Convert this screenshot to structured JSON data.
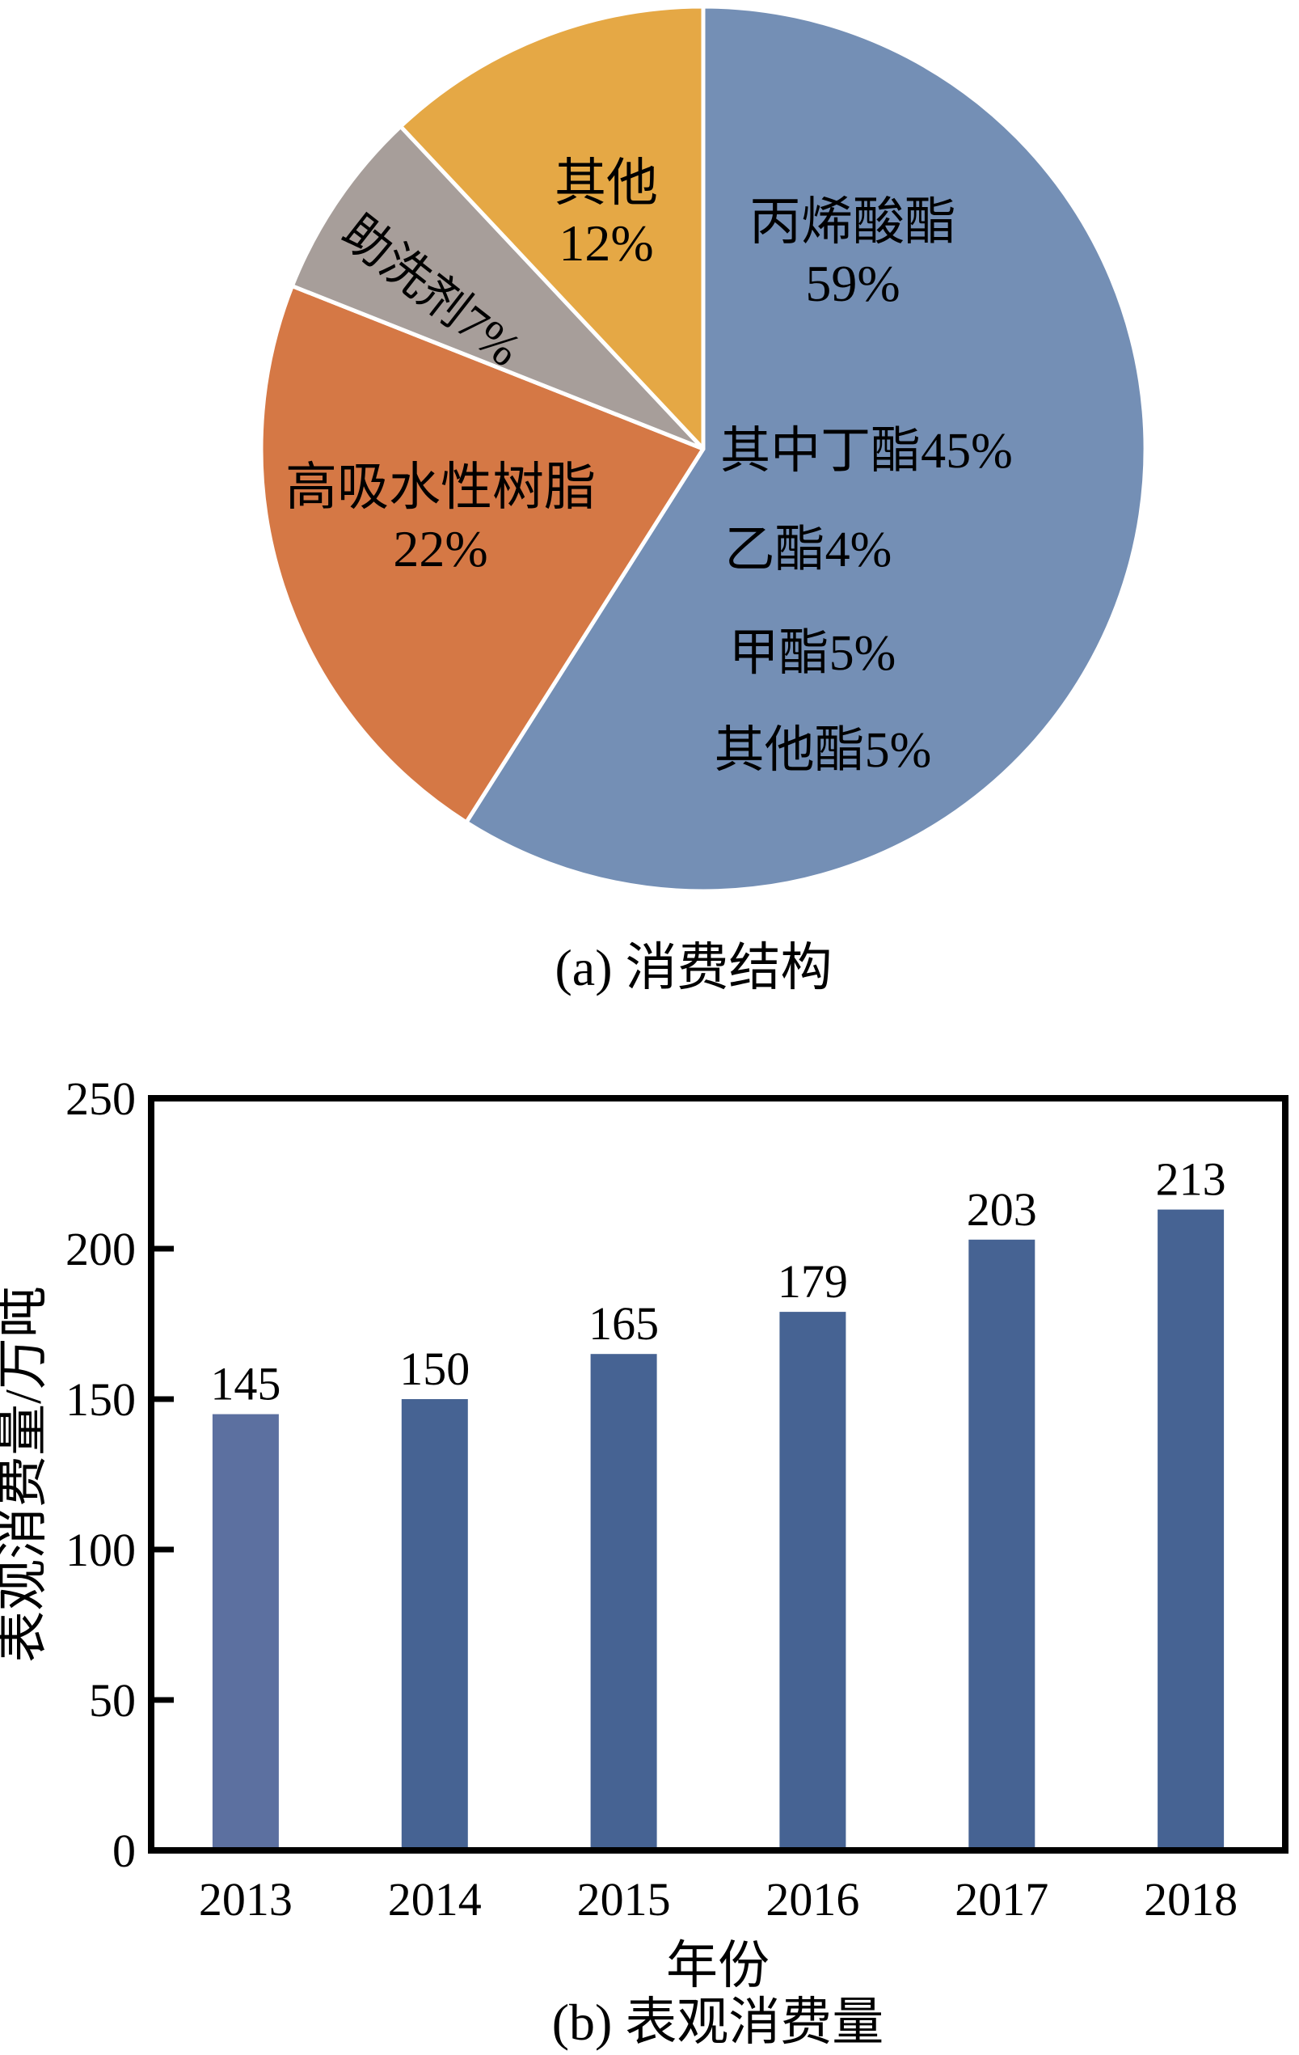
{
  "figure": {
    "caption_a": "(a) 消费结构",
    "caption_b": "(b) 表观消费量"
  },
  "colors": {
    "pie_blue": "#748FB5",
    "pie_orange": "#D57845",
    "pie_gray": "#A79E9A",
    "pie_yellow": "#E5A845",
    "bar_first": "#5C70A0",
    "bar_rest": "#466393",
    "axis": "#000000",
    "slice_separator": "#FFFFFF"
  },
  "chart_data": [
    {
      "type": "pie",
      "title": "消费结构",
      "start_angle_deg": 0,
      "direction": "clockwise",
      "legend_position": "none",
      "slices": [
        {
          "label": "丙烯酸酯",
          "pct_label": "59%",
          "value": 59,
          "color": "#748FB5",
          "sublabels": [
            "其中丁酯45%",
            "乙酯4%",
            "甲酯5%",
            "其他酯5%"
          ]
        },
        {
          "label": "高吸水性树脂",
          "pct_label": "22%",
          "value": 22,
          "color": "#D57845"
        },
        {
          "label": "助洗剂7%",
          "value": 7,
          "color": "#A79E9A"
        },
        {
          "label": "其他",
          "pct_label": "12%",
          "value": 12,
          "color": "#E5A845"
        }
      ]
    },
    {
      "type": "bar",
      "title": "表观消费量",
      "categories": [
        "2013",
        "2014",
        "2015",
        "2016",
        "2017",
        "2018"
      ],
      "values": [
        145,
        150,
        165,
        179,
        203,
        213
      ],
      "bar_colors": [
        "#5C70A0",
        "#466393",
        "#466393",
        "#466393",
        "#466393",
        "#466393"
      ],
      "xlabel": "年份",
      "ylabel": "表观消费量/万吨",
      "ylim": [
        0,
        250
      ],
      "yticks": [
        0,
        50,
        100,
        150,
        200,
        250
      ],
      "grid": false,
      "frame": "box",
      "value_labels": true
    }
  ]
}
